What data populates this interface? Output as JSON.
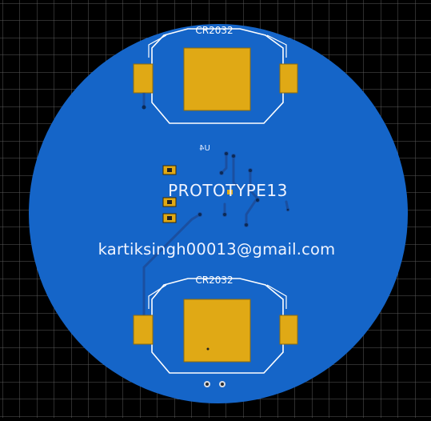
{
  "view": {
    "background_color": "#000000",
    "grid_color": "#5a5a5a",
    "board_color": "#1565c8",
    "trace_color": "#1b4fa0",
    "outline_color": "#ffffff",
    "pad_color": "#e0a915",
    "pad_outline": "#8a6a10"
  },
  "board": {
    "silkscreen_title": "PROTOTYPE13",
    "silkscreen_email": "kartiksingh00013@gmail.com",
    "ref_designator_mirrored": "U4"
  },
  "battery_holders": [
    {
      "label": "CR2032",
      "position": "top"
    },
    {
      "label": "CR2032",
      "position": "bottom"
    }
  ]
}
